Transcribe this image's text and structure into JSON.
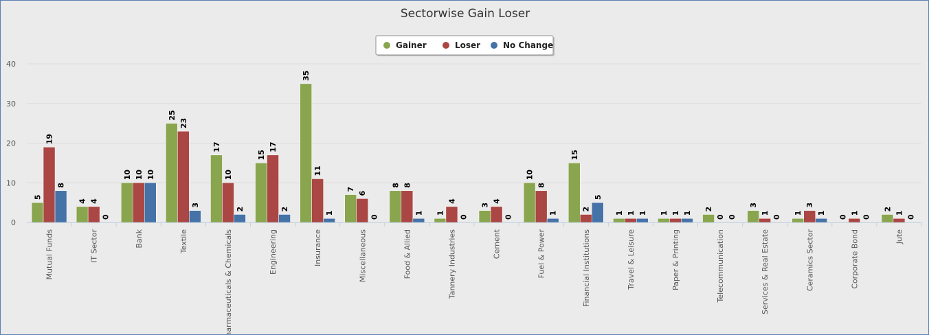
{
  "chart_data": {
    "type": "bar",
    "title": "Sectorwise Gain Loser",
    "xlabel": "",
    "ylabel": "",
    "ylim": [
      0,
      40
    ],
    "yticks": [
      0,
      10,
      20,
      30,
      40
    ],
    "grid": true,
    "legend_position": "top-center",
    "categories": [
      "Mutual Funds",
      "IT Sector",
      "Bank",
      "Textile",
      "Pharmaceuticals & Chemicals",
      "Engineering",
      "Insurance",
      "Miscellaneous",
      "Food & Allied",
      "Tannery Industries",
      "Cement",
      "Fuel & Power",
      "Financial Institutions",
      "Travel & Leisure",
      "Paper & Printing",
      "Telecommunication",
      "Services & Real Estate",
      "Ceramics Sector",
      "Corporate Bond",
      "Jute"
    ],
    "series": [
      {
        "name": "Gainer",
        "color": "#89a54e",
        "values": [
          5,
          4,
          10,
          25,
          17,
          15,
          35,
          7,
          8,
          1,
          3,
          10,
          15,
          1,
          1,
          2,
          3,
          1,
          0,
          2
        ]
      },
      {
        "name": "Loser",
        "color": "#aa4643",
        "values": [
          19,
          4,
          10,
          23,
          10,
          17,
          11,
          6,
          8,
          4,
          4,
          8,
          2,
          1,
          1,
          0,
          1,
          3,
          1,
          1
        ]
      },
      {
        "name": "No Change",
        "color": "#4572a7",
        "values": [
          8,
          0,
          10,
          3,
          2,
          2,
          1,
          0,
          1,
          0,
          0,
          1,
          5,
          1,
          1,
          0,
          0,
          1,
          0,
          0
        ]
      }
    ]
  }
}
